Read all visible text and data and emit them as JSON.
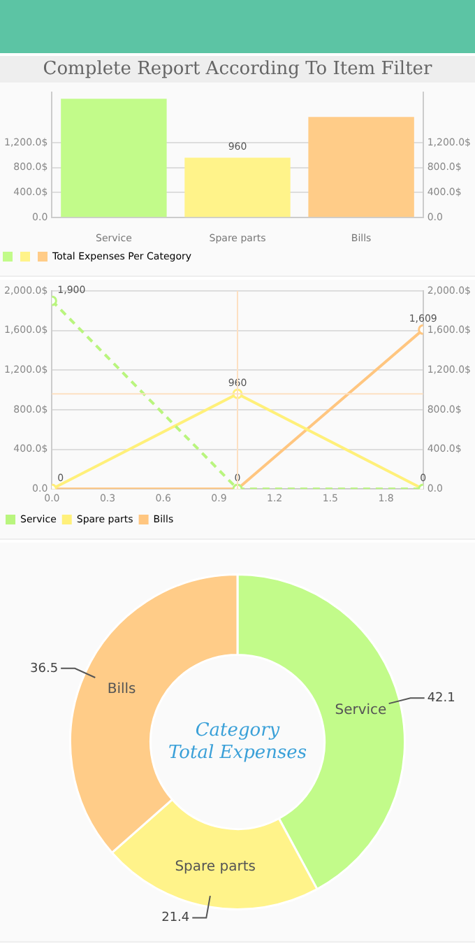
{
  "chart_data": [
    {
      "type": "bar",
      "title": "Complete Report According To Item Filter",
      "categories": [
        "Service",
        "Spare parts",
        "Bills"
      ],
      "series": [
        {
          "name": "Total Expenses Per Category",
          "colors": [
            "#c2fb8a",
            "#fff38a",
            "#ffcc88"
          ],
          "values": [
            1900,
            960,
            1609
          ],
          "value_labels": [
            null,
            "960",
            null
          ]
        }
      ],
      "ylim": [
        0,
        2000
      ],
      "yticks": [
        {
          "value": 0,
          "label": "0.0"
        },
        {
          "value": 400,
          "label": "400.0$"
        },
        {
          "value": 800,
          "label": "800.0$"
        },
        {
          "value": 1200,
          "label": "1,200.0$"
        }
      ],
      "y2lim": [
        0,
        2000
      ],
      "y2ticks": [
        {
          "value": 0,
          "label": "0.0"
        },
        {
          "value": 400,
          "label": "400.0$"
        },
        {
          "value": 800,
          "label": "800.0$"
        },
        {
          "value": 1200,
          "label": "1,200.0$"
        }
      ],
      "grid": "y",
      "legend": "bottom left"
    },
    {
      "type": "line",
      "x": [
        0,
        1,
        2
      ],
      "series": [
        {
          "name": "Service",
          "color": "#b9f57e",
          "values": [
            1900,
            0,
            0
          ],
          "line_style": "dashed",
          "value_labels": [
            "1,900",
            null,
            null
          ]
        },
        {
          "name": "Spare parts",
          "color": "#fff07a",
          "values": [
            0,
            960,
            0
          ],
          "value_labels": [
            null,
            "960",
            "0"
          ]
        },
        {
          "name": "Bills",
          "color": "#ffc680",
          "values": [
            0,
            0,
            1609
          ],
          "value_labels": [
            "0",
            "0",
            "1,609"
          ]
        }
      ],
      "xlim": [
        0,
        2
      ],
      "xticks": [
        {
          "value": 0,
          "label": "0.0"
        },
        {
          "value": 0.3,
          "label": "0.3"
        },
        {
          "value": 0.6,
          "label": "0.6"
        },
        {
          "value": 0.9,
          "label": "0.9"
        },
        {
          "value": 1.2,
          "label": "1.2"
        },
        {
          "value": 1.5,
          "label": "1.5"
        },
        {
          "value": 1.8,
          "label": "1.8"
        }
      ],
      "ylim": [
        0,
        2000
      ],
      "yticks": [
        {
          "value": 0,
          "label": "0.0"
        },
        {
          "value": 400,
          "label": "400.0$"
        },
        {
          "value": 800,
          "label": "800.0$"
        },
        {
          "value": 1200,
          "label": "1,200.0$"
        },
        {
          "value": 1600,
          "label": "1,600.0$"
        },
        {
          "value": 2000,
          "label": "2,000.0$"
        }
      ],
      "y2lim": [
        0,
        2000
      ],
      "y2ticks": [
        {
          "value": 0,
          "label": "0.0"
        },
        {
          "value": 400,
          "label": "400.0$"
        },
        {
          "value": 800,
          "label": "800.0$"
        },
        {
          "value": 1200,
          "label": "1,200.0$"
        },
        {
          "value": 1600,
          "label": "1,600.0$"
        },
        {
          "value": 2000,
          "label": "2,000.0$"
        }
      ],
      "ref_lines": [
        {
          "axis": "x",
          "value": 1,
          "color": "#fde0c2"
        },
        {
          "axis": "y",
          "value": 960,
          "color": "#fde0c2"
        }
      ],
      "marker": "circle",
      "grid": "y",
      "legend": "bottom left"
    },
    {
      "type": "donut",
      "categories": [
        "Service",
        "Spare parts",
        "Bills"
      ],
      "values": [
        42.1,
        21.4,
        36.5
      ],
      "colors": [
        "#c2fb8a",
        "#fff38a",
        "#ffcc88"
      ],
      "annotations": [
        "Category",
        "Total Expenses"
      ],
      "data_labels": true
    }
  ]
}
